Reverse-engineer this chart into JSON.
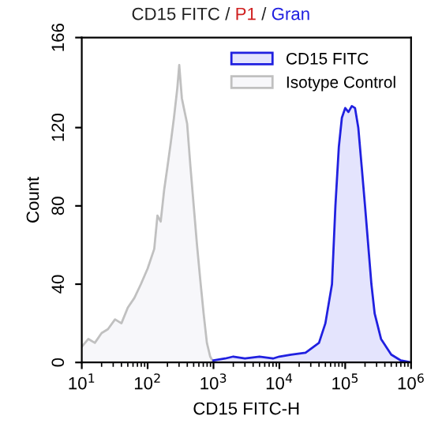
{
  "chart_data": {
    "type": "area",
    "title": "CD15 FITC / P1 / Gran",
    "xlabel": "CD15 FITC-H",
    "ylabel": "Count",
    "log": "x",
    "xlim": [
      10,
      1000000
    ],
    "ylim": [
      0,
      166
    ],
    "xticks": [
      {
        "value": 10,
        "label": "10$^{1}$"
      },
      {
        "value": 100,
        "label": "10$^{2}$"
      },
      {
        "value": 1000,
        "label": "10$^{3}$"
      },
      {
        "value": 10000,
        "label": "10$^{4}$"
      },
      {
        "value": 100000,
        "label": "10$^{5}$"
      },
      {
        "value": 1000000,
        "label": "10$^{6}$"
      }
    ],
    "yticks": [
      0,
      40,
      80,
      120,
      166
    ],
    "legend": "top right",
    "grid": false,
    "series": [
      {
        "name": "CD15 FITC",
        "color": "#2020e0",
        "x": [
          1000,
          1500,
          2000,
          3000,
          5000,
          8000,
          10000,
          15000,
          25000,
          40000,
          50000,
          63000,
          71000,
          80000,
          89000,
          100000,
          112000,
          126000,
          141000,
          158000,
          178000,
          200000,
          250000,
          280000,
          350000,
          500000,
          700000,
          1000000
        ],
        "values": [
          1,
          2,
          3,
          2,
          3,
          2,
          3,
          4,
          5,
          10,
          20,
          40,
          80,
          110,
          125,
          130,
          128,
          131,
          130,
          120,
          100,
          80,
          40,
          25,
          12,
          4,
          1,
          0
        ]
      },
      {
        "name": "Isotype Control",
        "color": "#c0c0c0",
        "x": [
          10,
          12.6,
          15.8,
          20,
          25,
          32,
          40,
          50,
          63,
          79,
          100,
          126,
          141,
          158,
          178,
          200,
          224,
          251,
          282,
          302,
          331,
          355,
          398,
          447,
          501,
          562,
          631,
          708,
          794,
          891,
          1000
        ],
        "values": [
          8,
          12,
          10,
          15,
          17,
          22,
          20,
          28,
          33,
          40,
          48,
          58,
          75,
          72,
          88,
          100,
          112,
          125,
          140,
          152,
          135,
          130,
          122,
          100,
          80,
          60,
          42,
          25,
          10,
          3,
          0
        ]
      }
    ]
  }
}
